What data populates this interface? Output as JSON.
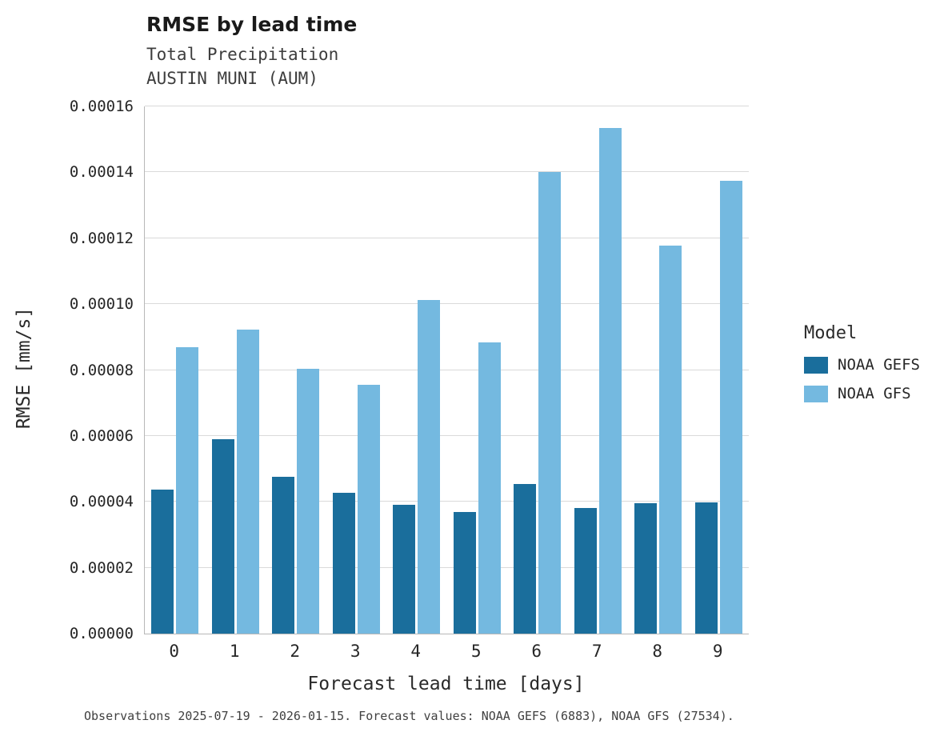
{
  "title": "RMSE by lead time",
  "subtitle": "Total Precipitation",
  "station": "AUSTIN MUNI (AUM)",
  "caption": "Observations 2025-07-19 - 2026-01-15. Forecast values: NOAA GEFS (6883), NOAA GFS (27534).",
  "legend": {
    "title": "Model",
    "entries": [
      {
        "label": "NOAA GEFS",
        "color": "#1a6e9c"
      },
      {
        "label": "NOAA GFS",
        "color": "#74b9e0"
      }
    ]
  },
  "chart_data": {
    "type": "bar",
    "title": "RMSE by lead time",
    "subtitle": "Total Precipitation",
    "station": "AUSTIN MUNI (AUM)",
    "xlabel": "Forecast lead time [days]",
    "ylabel": "RMSE [mm/s]",
    "categories": [
      "0",
      "1",
      "2",
      "3",
      "4",
      "5",
      "6",
      "7",
      "8",
      "9"
    ],
    "series": [
      {
        "name": "NOAA GEFS",
        "color": "#1a6e9c",
        "values": [
          4.37e-05,
          5.91e-05,
          4.77e-05,
          4.28e-05,
          3.91e-05,
          3.69e-05,
          4.54e-05,
          3.81e-05,
          3.96e-05,
          3.99e-05
        ]
      },
      {
        "name": "NOAA GFS",
        "color": "#74b9e0",
        "values": [
          8.69e-05,
          9.22e-05,
          8.03e-05,
          7.54e-05,
          0.0001012,
          8.83e-05,
          0.0001401,
          0.0001535,
          0.0001177,
          0.0001374
        ]
      }
    ],
    "ylim": [
      0,
      0.00016
    ],
    "ytick_step": 2e-05,
    "ytick_format_decimals": 5,
    "grid": true,
    "legend_position": "right"
  }
}
